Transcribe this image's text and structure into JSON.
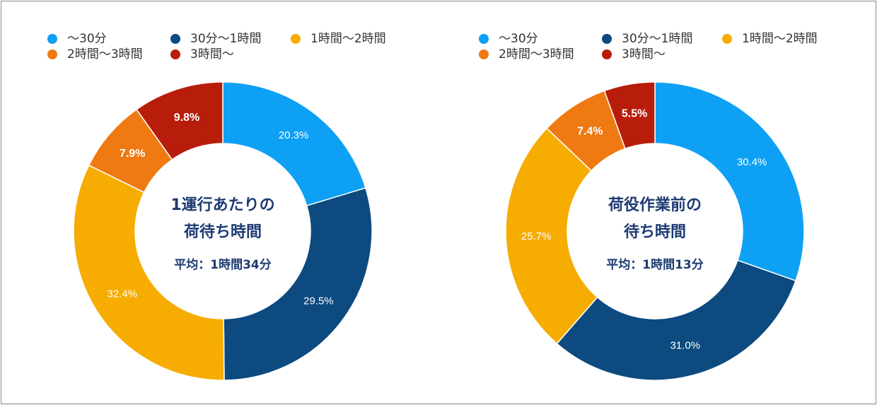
{
  "colors": {
    "under_30": "#0ea0f5",
    "30_to_1h": "#0c4a7f",
    "1h_to_2h": "#f7ac02",
    "2h_to_3h": "#ef7a12",
    "over_3h": "#b81c0b",
    "center_text": "#1d3b73"
  },
  "legend": [
    "〜30分",
    "30分〜1時間",
    "1時間〜2時間",
    "2時間〜3時間",
    "3時間〜"
  ],
  "chart_data": [
    {
      "type": "pie",
      "variant": "donut",
      "categories": [
        "〜30分",
        "30分〜1時間",
        "1時間〜2時間",
        "2時間〜3時間",
        "3時間〜"
      ],
      "values": [
        20.3,
        29.5,
        32.4,
        7.9,
        9.8
      ],
      "value_labels": [
        "20.3%",
        "29.5%",
        "32.4%",
        "7.9%",
        "9.8%"
      ],
      "center_title_line1": "1運行あたりの",
      "center_title_line2": "荷待ち時間",
      "center_average": "平均：1時間34分"
    },
    {
      "type": "pie",
      "variant": "donut",
      "categories": [
        "〜30分",
        "30分〜1時間",
        "1時間〜2時間",
        "2時間〜3時間",
        "3時間〜"
      ],
      "values": [
        30.4,
        31.0,
        25.7,
        7.4,
        5.5
      ],
      "value_labels": [
        "30.4%",
        "31.0%",
        "25.7%",
        "7.4%",
        "5.5%"
      ],
      "center_title_line1": "荷役作業前の",
      "center_title_line2": "待ち時間",
      "center_average": "平均：1時間13分"
    }
  ]
}
